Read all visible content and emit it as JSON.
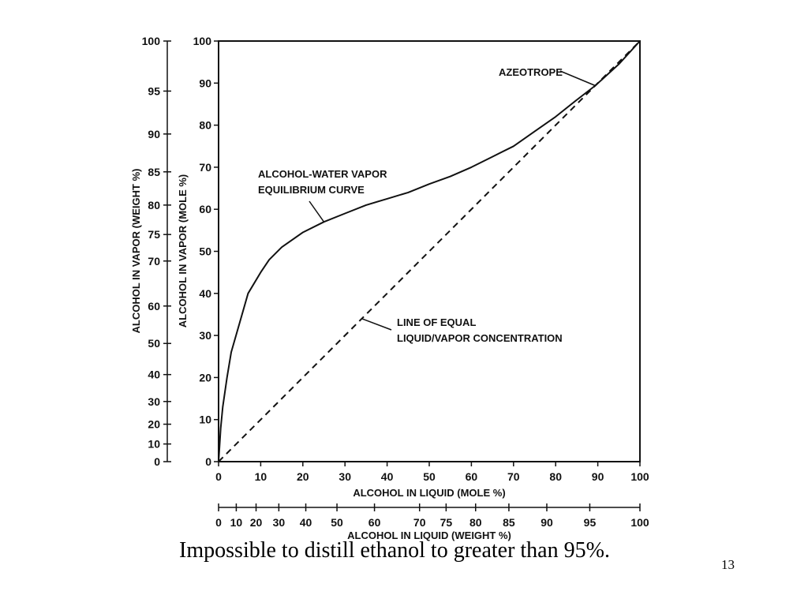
{
  "caption": "Impossible to distill ethanol to greater than 95%.",
  "page_number": "13",
  "chart_data": {
    "type": "line",
    "xlabel": "ALCOHOL IN LIQUID (MOLE %)",
    "xlabel_secondary": "ALCOHOL IN LIQUID (WEIGHT %)",
    "ylabel": "ALCOHOL IN VAPOR (MOLE %)",
    "ylabel_secondary": "ALCOHOL IN VAPOR (WEIGHT %)",
    "xlim": [
      0,
      100
    ],
    "ylim": [
      0,
      100
    ],
    "grid": false,
    "x_ticks": [
      "0",
      "10",
      "20",
      "30",
      "40",
      "50",
      "60",
      "70",
      "80",
      "90",
      "100"
    ],
    "y_ticks": [
      "0",
      "10",
      "20",
      "30",
      "40",
      "50",
      "60",
      "70",
      "80",
      "90",
      "100"
    ],
    "x_weight_ticks": [
      {
        "label": "0",
        "mole": 0
      },
      {
        "label": "10",
        "mole": 4.2
      },
      {
        "label": "20",
        "mole": 8.9
      },
      {
        "label": "30",
        "mole": 14.3
      },
      {
        "label": "40",
        "mole": 20.7
      },
      {
        "label": "50",
        "mole": 28.1
      },
      {
        "label": "60",
        "mole": 37.0
      },
      {
        "label": "70",
        "mole": 47.7
      },
      {
        "label": "75",
        "mole": 54.0
      },
      {
        "label": "80",
        "mole": 61.0
      },
      {
        "label": "85",
        "mole": 68.9
      },
      {
        "label": "90",
        "mole": 77.9
      },
      {
        "label": "95",
        "mole": 88.1
      },
      {
        "label": "100",
        "mole": 100
      }
    ],
    "y_weight_ticks": [
      {
        "label": "0",
        "mole": 0
      },
      {
        "label": "10",
        "mole": 4.2
      },
      {
        "label": "20",
        "mole": 8.9
      },
      {
        "label": "30",
        "mole": 14.3
      },
      {
        "label": "40",
        "mole": 20.7
      },
      {
        "label": "50",
        "mole": 28.1
      },
      {
        "label": "60",
        "mole": 37.0
      },
      {
        "label": "70",
        "mole": 47.7
      },
      {
        "label": "75",
        "mole": 54.0
      },
      {
        "label": "80",
        "mole": 61.0
      },
      {
        "label": "85",
        "mole": 68.9
      },
      {
        "label": "90",
        "mole": 77.9
      },
      {
        "label": "95",
        "mole": 88.1
      },
      {
        "label": "100",
        "mole": 100
      }
    ],
    "series": [
      {
        "style": "solid",
        "x": [
          0,
          0.5,
          1,
          2,
          3,
          5,
          7,
          10,
          12,
          15,
          20,
          25,
          30,
          35,
          40,
          45,
          50,
          55,
          60,
          65,
          70,
          75,
          80,
          85,
          89.4,
          95,
          100
        ],
        "y": [
          0,
          8,
          13,
          20,
          26,
          33,
          40,
          45,
          48,
          51,
          54.5,
          57,
          59,
          61,
          62.5,
          64,
          66,
          67.8,
          70,
          72.5,
          75,
          78.5,
          82,
          86,
          89.4,
          94.5,
          100
        ]
      },
      {
        "style": "dashed",
        "x": [
          0,
          100
        ],
        "y": [
          0,
          100
        ]
      }
    ],
    "annotations": [
      {
        "lines": [
          "AZEOTROPE"
        ],
        "x": 89.4,
        "y": 89.4
      },
      {
        "lines": [
          "ALCOHOL-WATER VAPOR",
          "EQUILIBRIUM CURVE"
        ],
        "x": 25,
        "y": 57
      },
      {
        "lines": [
          "LINE OF EQUAL",
          "LIQUID/VAPOR CONCENTRATION"
        ],
        "x": 34,
        "y": 34
      }
    ]
  }
}
